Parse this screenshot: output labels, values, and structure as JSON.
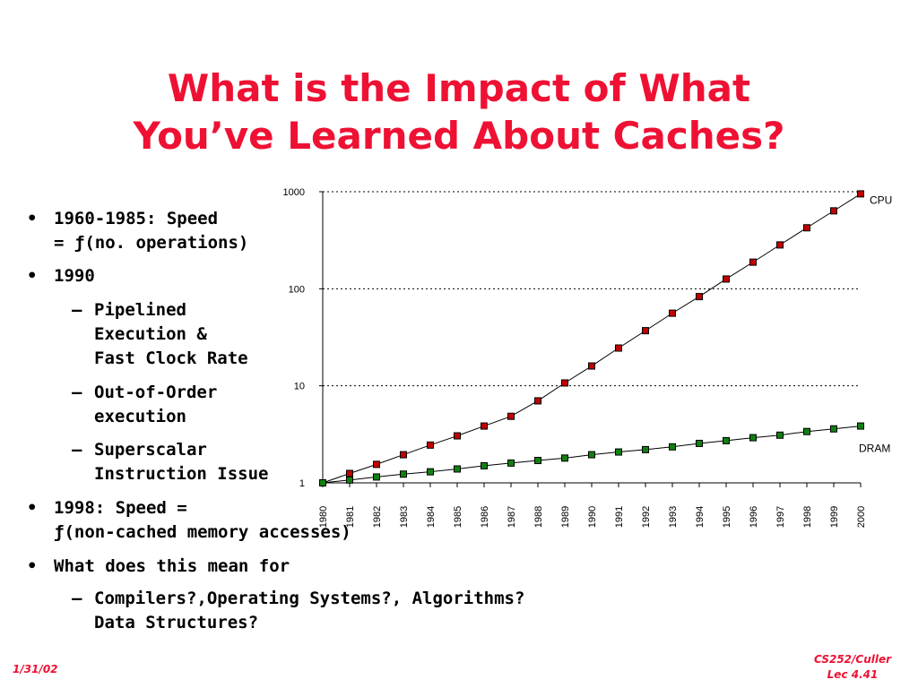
{
  "slide": {
    "title_line1": "What is the Impact of What",
    "title_line2": "You’ve Learned About Caches?",
    "date": "1/31/02",
    "course": "CS252/Culler",
    "lecture": "Lec 4.41",
    "title_color": "#ee1133"
  },
  "bullets": {
    "b1_line1": "1960-1985: Speed",
    "b1_line2": "= ƒ(no. operations)",
    "b2": "1990",
    "b2_sub1_line1": "Pipelined",
    "b2_sub1_line2": "Execution &",
    "b2_sub1_line3": "Fast Clock Rate",
    "b2_sub2_line1": "Out-of-Order",
    "b2_sub2_line2": "execution",
    "b2_sub3_line1": "Superscalar",
    "b2_sub3_line2": "Instruction Issue",
    "b3_line1": "1998: Speed =",
    "b3_line2": "ƒ(non-cached memory accesses)",
    "b4": "What does this mean for",
    "b4_sub1_line1": "Compilers?,Operating Systems?, Algorithms?",
    "b4_sub1_line2": "Data Structures?",
    "bullet_glyph": "•",
    "dash_glyph": "–"
  },
  "chart_data": {
    "type": "line",
    "x": [
      1980,
      1981,
      1982,
      1983,
      1984,
      1985,
      1986,
      1987,
      1988,
      1989,
      1990,
      1991,
      1992,
      1993,
      1994,
      1995,
      1996,
      1997,
      1998,
      1999,
      2000
    ],
    "x_tick_labels": [
      "1980",
      "1981",
      "1982",
      "1983",
      "1984",
      "1985",
      "1986",
      "1987",
      "1988",
      "1989",
      "1990",
      "1991",
      "1992",
      "1993",
      "1994",
      "1995",
      "1996",
      "1997",
      "1998",
      "1999",
      "2000"
    ],
    "y_scale": "log",
    "ylim": [
      1,
      1000
    ],
    "y_tick_labels": [
      "1",
      "10",
      "100",
      "1000"
    ],
    "y_ticks": [
      1,
      10,
      100,
      1000
    ],
    "grid": "horizontal dotted",
    "series": [
      {
        "name": "CPU",
        "color": "#c00000",
        "values": [
          1,
          1.25,
          1.55,
          1.95,
          2.45,
          3.05,
          3.85,
          4.85,
          7.0,
          10.7,
          16,
          24.5,
          37,
          56,
          83,
          126,
          188,
          283,
          425,
          635,
          950
        ]
      },
      {
        "name": "DRAM",
        "color": "#108010",
        "values": [
          1,
          1.07,
          1.15,
          1.23,
          1.3,
          1.39,
          1.5,
          1.6,
          1.7,
          1.8,
          1.95,
          2.08,
          2.2,
          2.35,
          2.55,
          2.72,
          2.92,
          3.1,
          3.38,
          3.6,
          3.85
        ]
      }
    ]
  }
}
